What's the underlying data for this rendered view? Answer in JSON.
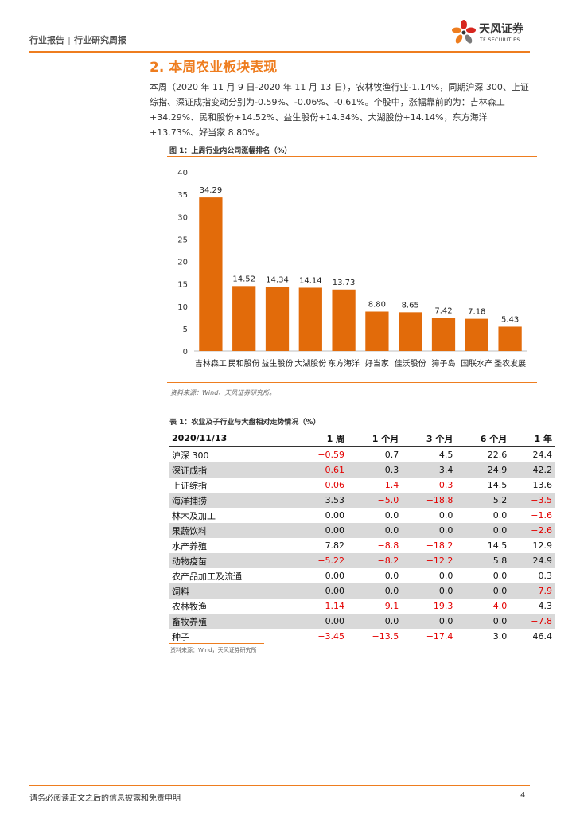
{
  "header": {
    "crumb1": "行业报告",
    "separator": "|",
    "crumb2": "行业研究周报",
    "logo_name": "天风证券",
    "logo_sub": "TF SECURITIES",
    "accent_color": "#ee7d1f"
  },
  "section": {
    "title": "2. 本周农业板块表现",
    "paragraph": "本周（2020 年 11 月 9 日-2020 年 11 月 13 日），农林牧渔行业-1.14%，同期沪深 300、上证综指、深证成指变动分别为-0.59%、-0.06%、-0.61%。个股中，涨幅靠前的为：吉林森工+34.29%、民和股份+14.52%、益生股份+14.34%、大湖股份+14.14%，东方海洋+13.73%、好当家 8.80%。"
  },
  "figure": {
    "title": "图 1：上周行业内公司涨幅排名（%）",
    "source": "资料来源：Wind、天风证券研究所。"
  },
  "chart_data": {
    "type": "bar",
    "title": "图 1：上周行业内公司涨幅排名（%）",
    "categories": [
      "吉林森工",
      "民和股份",
      "益生股份",
      "大湖股份",
      "东方海洋",
      "好当家",
      "佳沃股份",
      "獐子岛",
      "国联水产",
      "圣农发展"
    ],
    "values": [
      34.29,
      14.52,
      14.34,
      14.14,
      13.73,
      8.8,
      8.65,
      7.42,
      7.18,
      5.43
    ],
    "value_labels": [
      "34.29",
      "14.52",
      "14.34",
      "14.14",
      "13.73",
      "8.80",
      "8.65",
      "7.42",
      "7.18",
      "5.43"
    ],
    "yticks": [
      "0",
      "5",
      "10",
      "15",
      "20",
      "25",
      "30",
      "35",
      "40"
    ],
    "ylim": [
      0,
      40
    ],
    "bar_color": "#e26b0a",
    "xlabel": "",
    "ylabel": "",
    "grid": false
  },
  "table": {
    "title": "表 1：农业及子行业与大盘相对走势情况（%）",
    "headers": [
      "2020/11/13",
      "1 周",
      "1 个月",
      "3 个月",
      "6 个月",
      "1 年"
    ],
    "rows": [
      [
        "沪深 300",
        "−0.59",
        "0.7",
        "4.5",
        "22.6",
        "24.4"
      ],
      [
        "深证成指",
        "−0.61",
        "0.3",
        "3.4",
        "24.9",
        "42.2"
      ],
      [
        "上证综指",
        "−0.06",
        "−1.4",
        "−0.3",
        "14.5",
        "13.6"
      ],
      [
        "海洋捕捞",
        "3.53",
        "−5.0",
        "−18.8",
        "5.2",
        "−3.5"
      ],
      [
        "林木及加工",
        "0.00",
        "0.0",
        "0.0",
        "0.0",
        "−1.6"
      ],
      [
        "果蔬饮料",
        "0.00",
        "0.0",
        "0.0",
        "0.0",
        "−2.6"
      ],
      [
        "水产养殖",
        "7.82",
        "−8.8",
        "−18.2",
        "14.5",
        "12.9"
      ],
      [
        "动物疫苗",
        "−5.22",
        "−8.2",
        "−12.2",
        "5.8",
        "24.9"
      ],
      [
        "农产品加工及流通",
        "0.00",
        "0.0",
        "0.0",
        "0.0",
        "0.3"
      ],
      [
        "饲料",
        "0.00",
        "0.0",
        "0.0",
        "0.0",
        "−7.9"
      ],
      [
        "农林牧渔",
        "−1.14",
        "−9.1",
        "−19.3",
        "−4.0",
        "4.3"
      ],
      [
        "畜牧养殖",
        "0.00",
        "0.0",
        "0.0",
        "0.0",
        "−7.8"
      ],
      [
        "种子",
        "−3.45",
        "−13.5",
        "−17.4",
        "3.0",
        "46.4"
      ]
    ],
    "source": "资料来源：Wind，天风证券研究所",
    "negative_color": "#e30000",
    "stripe_color": "#d9d9d9"
  },
  "footer": {
    "disclaimer": "请务必阅读正文之后的信息披露和免责申明",
    "page_number": "4"
  }
}
